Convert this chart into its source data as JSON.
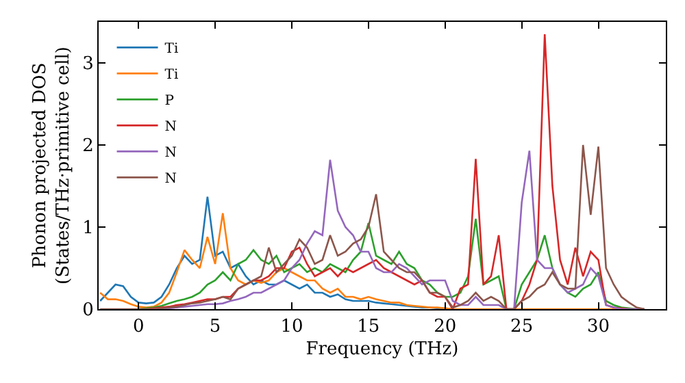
{
  "chart_data": {
    "type": "line",
    "xlabel": "Frequency (THz)",
    "ylabel": "Phonon projected DOS\n(States/THz·primitive cell)",
    "x": [
      -2.5,
      -2,
      -1.5,
      -1,
      -0.5,
      0,
      0.5,
      1,
      1.5,
      2,
      2.5,
      3,
      3.5,
      4,
      4.5,
      5,
      5.5,
      6,
      6.5,
      7,
      7.5,
      8,
      8.5,
      9,
      9.5,
      10,
      10.5,
      11,
      11.5,
      12,
      12.5,
      13,
      13.5,
      14,
      14.5,
      15,
      15.5,
      16,
      16.5,
      17,
      17.5,
      18,
      18.5,
      19,
      19.5,
      20,
      20.5,
      21,
      21.5,
      22,
      22.5,
      23,
      23.5,
      24,
      24.5,
      25,
      25.5,
      26,
      26.5,
      27,
      27.5,
      28,
      28.5,
      29,
      29.5,
      30,
      30.5,
      31,
      31.5,
      32,
      32.5,
      33
    ],
    "series": [
      {
        "name": "Ti",
        "color": "#1f77b4",
        "values": [
          0.1,
          0.2,
          0.3,
          0.28,
          0.15,
          0.08,
          0.07,
          0.08,
          0.15,
          0.3,
          0.5,
          0.65,
          0.55,
          0.6,
          1.37,
          0.65,
          0.7,
          0.5,
          0.55,
          0.4,
          0.3,
          0.35,
          0.3,
          0.3,
          0.35,
          0.3,
          0.25,
          0.3,
          0.2,
          0.2,
          0.15,
          0.18,
          0.12,
          0.1,
          0.1,
          0.1,
          0.08,
          0.07,
          0.06,
          0.05,
          0.04,
          0.03,
          0.02,
          0.02,
          0.01,
          0.01,
          0,
          null,
          null,
          null,
          null,
          null,
          null,
          null,
          null,
          null,
          null,
          null,
          null,
          null,
          null,
          null,
          null,
          null,
          null,
          null,
          null,
          null,
          null,
          null,
          null,
          null
        ]
      },
      {
        "name": "Ti",
        "color": "#ff7f0e",
        "values": [
          0.2,
          0.12,
          0.12,
          0.1,
          0.06,
          0.03,
          0.02,
          0.03,
          0.08,
          0.2,
          0.45,
          0.72,
          0.6,
          0.5,
          0.88,
          0.55,
          1.17,
          0.5,
          0.35,
          0.3,
          0.35,
          0.32,
          0.35,
          0.45,
          0.5,
          0.45,
          0.4,
          0.35,
          0.35,
          0.25,
          0.2,
          0.25,
          0.15,
          0.15,
          0.12,
          0.15,
          0.12,
          0.1,
          0.08,
          0.08,
          0.05,
          0.04,
          0.03,
          0.02,
          0.02,
          0.01,
          0,
          0,
          0,
          0,
          0,
          0,
          0,
          0,
          0,
          0,
          0,
          0,
          0,
          0,
          0,
          0,
          0,
          0,
          0,
          0,
          0,
          0,
          0,
          0,
          null,
          null
        ]
      },
      {
        "name": "P",
        "color": "#2ca02c",
        "values": [
          null,
          null,
          null,
          null,
          null,
          0,
          0.01,
          0.02,
          0.04,
          0.07,
          0.1,
          0.12,
          0.15,
          0.2,
          0.3,
          0.35,
          0.45,
          0.35,
          0.55,
          0.6,
          0.72,
          0.6,
          0.55,
          0.65,
          0.45,
          0.5,
          0.55,
          0.45,
          0.5,
          0.45,
          0.55,
          0.5,
          0.45,
          0.6,
          0.7,
          1.05,
          0.65,
          0.6,
          0.55,
          0.7,
          0.55,
          0.5,
          0.35,
          0.3,
          0.2,
          0.15,
          0.15,
          0.2,
          0.4,
          1.1,
          0.3,
          0.35,
          0.4,
          0,
          0,
          0.3,
          0.45,
          0.6,
          0.9,
          0.5,
          0.3,
          0.2,
          0.15,
          0.25,
          0.3,
          0.45,
          0.1,
          0.05,
          0.02,
          0.01,
          0,
          0
        ]
      },
      {
        "name": "N",
        "color": "#d62728",
        "values": [
          null,
          null,
          null,
          null,
          null,
          0,
          0,
          0.01,
          0.02,
          0.03,
          0.05,
          0.06,
          0.08,
          0.1,
          0.12,
          0.12,
          0.15,
          0.15,
          0.25,
          0.3,
          0.35,
          0.35,
          0.4,
          0.5,
          0.5,
          0.7,
          0.75,
          0.55,
          0.4,
          0.45,
          0.5,
          0.4,
          0.5,
          0.45,
          0.5,
          0.55,
          0.6,
          0.5,
          0.45,
          0.4,
          0.35,
          0.3,
          0.35,
          0.2,
          0.15,
          0.15,
          0,
          0.25,
          0.3,
          1.83,
          0.3,
          0.4,
          0.9,
          0,
          0,
          0.1,
          0.3,
          0.6,
          3.35,
          1.5,
          0.6,
          0.3,
          0.75,
          0.4,
          0.7,
          0.6,
          0.05,
          0.02,
          0.01,
          0,
          0,
          0
        ]
      },
      {
        "name": "N",
        "color": "#9467bd",
        "values": [
          null,
          null,
          null,
          null,
          null,
          null,
          null,
          0,
          0,
          0.01,
          0.02,
          0.03,
          0.04,
          0.05,
          0.06,
          0.06,
          0.07,
          0.1,
          0.12,
          0.15,
          0.2,
          0.2,
          0.25,
          0.3,
          0.35,
          0.5,
          0.6,
          0.8,
          0.95,
          0.9,
          1.82,
          1.2,
          1.0,
          0.9,
          0.7,
          0.7,
          0.5,
          0.45,
          0.45,
          0.55,
          0.5,
          0.4,
          0.3,
          0.35,
          0.35,
          0.35,
          0.1,
          0.05,
          0.05,
          0.15,
          0.05,
          0.05,
          0.05,
          0,
          0,
          1.3,
          1.93,
          0.6,
          0.5,
          0.5,
          0.3,
          0.2,
          0.25,
          0.3,
          0.5,
          0.4,
          0.05,
          0.02,
          0,
          0,
          0,
          0
        ]
      },
      {
        "name": "N",
        "color": "#8c564b",
        "values": [
          0,
          0,
          0,
          0,
          0,
          0,
          0,
          0,
          0.01,
          0.02,
          0.03,
          0.05,
          0.07,
          0.08,
          0.1,
          0.12,
          0.15,
          0.12,
          0.25,
          0.3,
          0.35,
          0.4,
          0.75,
          0.45,
          0.55,
          0.65,
          0.85,
          0.75,
          0.55,
          0.6,
          0.9,
          0.65,
          0.7,
          0.8,
          0.85,
          1.0,
          1.4,
          0.7,
          0.6,
          0.5,
          0.45,
          0.45,
          0.35,
          0.2,
          0.2,
          0.15,
          0.02,
          0.05,
          0.1,
          0.2,
          0.1,
          0.15,
          0.1,
          0,
          0,
          0.1,
          0.15,
          0.25,
          0.3,
          0.45,
          0.3,
          0.25,
          0.25,
          2.0,
          1.15,
          1.98,
          0.5,
          0.3,
          0.15,
          0.08,
          0.02,
          0
        ]
      }
    ],
    "xlim": [
      -2.6,
      34.4
    ],
    "xticks": [
      0,
      5,
      10,
      15,
      20,
      25,
      30
    ],
    "ylim": [
      0,
      3.5
    ],
    "yticks": [
      0,
      1,
      2,
      3
    ],
    "legend": "top left",
    "marker": "none",
    "line_style": "solid"
  }
}
